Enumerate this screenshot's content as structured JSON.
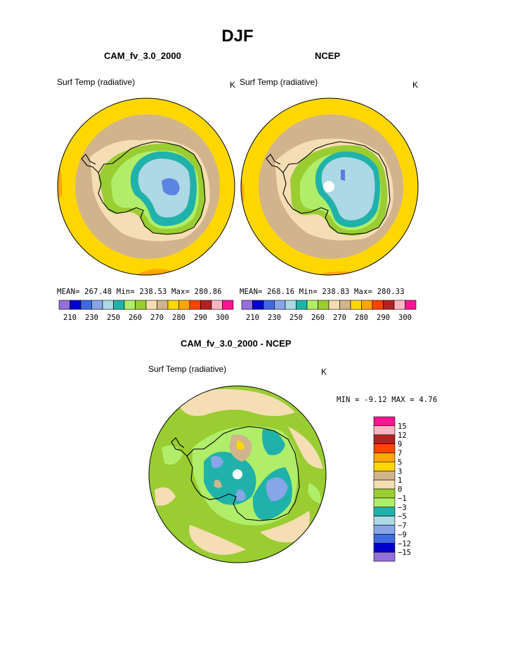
{
  "figure": {
    "title": "DJF"
  },
  "panels": [
    {
      "title": "CAM_fv_3.0_2000",
      "variable": "Surf Temp (radiative)",
      "units": "K",
      "stats": "MEAN= 267.48  Min= 238.53  Max= 280.86"
    },
    {
      "title": "NCEP",
      "variable": "Surf Temp (radiative)",
      "units": "K",
      "stats": "MEAN= 268.16  Min= 238.83  Max= 280.33"
    }
  ],
  "diff_panel": {
    "title": "CAM_fv_3.0_2000 - NCEP",
    "variable": "Surf Temp (radiative)",
    "units": "K",
    "stats": "MIN =  -9.12 MAX =   4.76"
  },
  "colors": {
    "abs_levels": [
      "#9370db",
      "#0000cd",
      "#4169e1",
      "#87a6e8",
      "#add8e6",
      "#20b2aa",
      "#b0ee6a",
      "#9acd32",
      "#f5deb3",
      "#d2b48c",
      "#ffd700",
      "#ffa500",
      "#ff4500",
      "#b22222",
      "#ffb6c1",
      "#ff1493"
    ],
    "diff_levels": [
      "#9370db",
      "#0000cd",
      "#4169e1",
      "#87a6e8",
      "#add8e6",
      "#20b2aa",
      "#b0ee6a",
      "#9acd32",
      "#f5deb3",
      "#d2b48c",
      "#ffd700",
      "#ffa500",
      "#ff4500",
      "#b22222",
      "#ffb6c1",
      "#ff1493"
    ]
  },
  "chart_data": [
    {
      "type": "heatmap",
      "title": "CAM_fv_3.0_2000",
      "subtitle": "Surf Temp (radiative)",
      "units": "K",
      "projection": "polar stereographic, south pole",
      "colorbar_ticks": [
        "210",
        "230",
        "250",
        "260",
        "270",
        "280",
        "290",
        "300"
      ],
      "mean": 267.48,
      "min": 238.53,
      "max": 280.86
    },
    {
      "type": "heatmap",
      "title": "NCEP",
      "subtitle": "Surf Temp (radiative)",
      "units": "K",
      "projection": "polar stereographic, south pole",
      "colorbar_ticks": [
        "210",
        "230",
        "250",
        "260",
        "270",
        "280",
        "290",
        "300"
      ],
      "mean": 268.16,
      "min": 238.83,
      "max": 280.33
    },
    {
      "type": "heatmap",
      "title": "CAM_fv_3.0_2000 - NCEP",
      "subtitle": "Surf Temp (radiative)",
      "units": "K",
      "projection": "polar stereographic, south pole",
      "colorbar_ticks": [
        "15",
        "12",
        "9",
        "7",
        "5",
        "3",
        "1",
        "0",
        "−1",
        "−3",
        "−5",
        "−7",
        "−9",
        "−12",
        "−15"
      ],
      "min": -9.12,
      "max": 4.76
    }
  ]
}
